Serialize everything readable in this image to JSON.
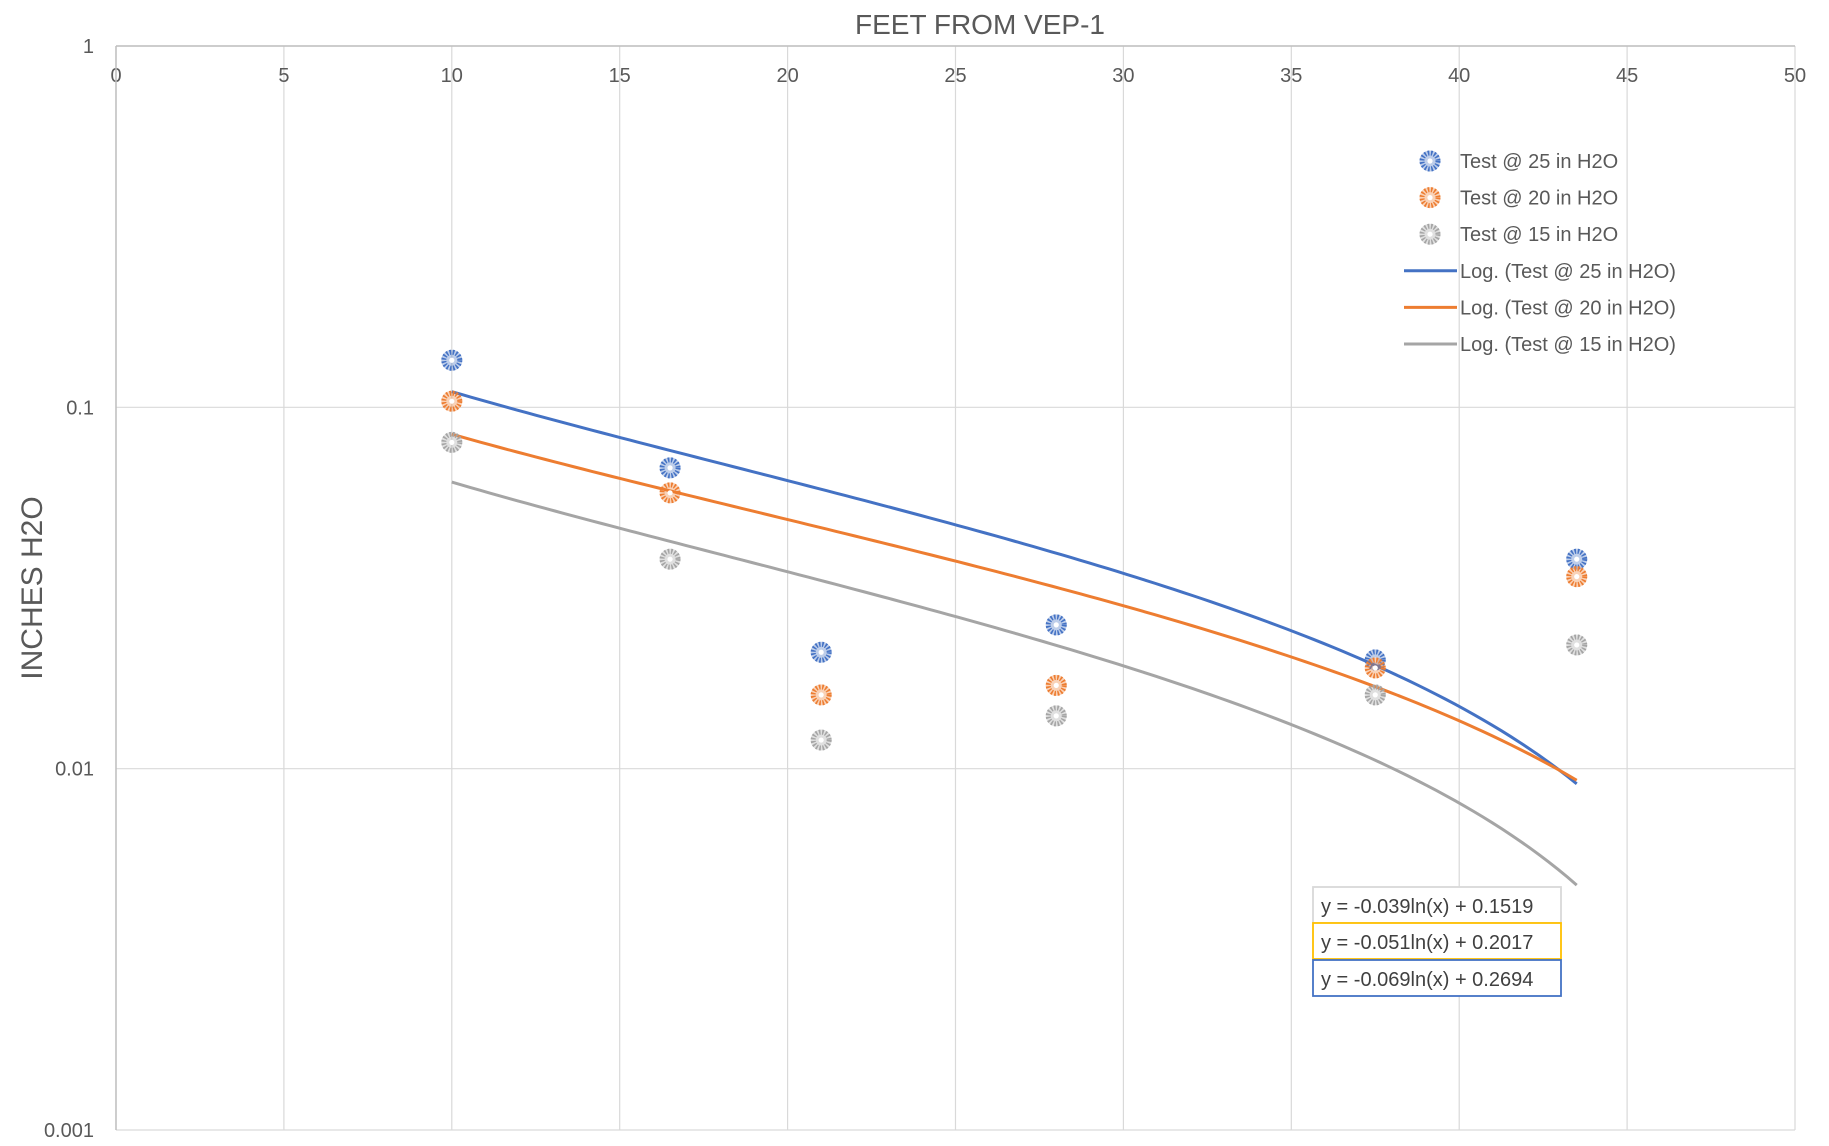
{
  "chart_data": {
    "type": "scatter",
    "title": "FEET FROM VEP-1",
    "xlabel": "",
    "ylabel": "INCHES H2O",
    "x_axis_position": "top",
    "xlim": [
      0,
      50
    ],
    "x_ticks": [
      0,
      5,
      10,
      15,
      20,
      25,
      30,
      35,
      40,
      45,
      50
    ],
    "y_scale": "log",
    "ylim": [
      0.001,
      1
    ],
    "y_ticks": [
      0.001,
      0.01,
      0.1,
      1
    ],
    "y_tick_labels": [
      "0.001",
      "0.01",
      "0.1",
      "1"
    ],
    "grid": true,
    "legend_position": "top-right",
    "x": [
      10,
      16.5,
      21,
      28,
      37.5,
      43.5
    ],
    "series": [
      {
        "name": "Test @ 25 in H2O",
        "color": "#4472C4",
        "values": [
          0.135,
          0.068,
          0.021,
          0.025,
          0.02,
          0.038
        ]
      },
      {
        "name": "Test @ 20 in H2O",
        "color": "#ED7D31",
        "values": [
          0.104,
          0.058,
          0.016,
          0.017,
          0.019,
          0.034
        ]
      },
      {
        "name": "Test @ 15 in H2O",
        "color": "#A5A5A5",
        "values": [
          0.08,
          0.038,
          0.012,
          0.014,
          0.016,
          0.022
        ]
      }
    ],
    "trendlines": [
      {
        "name": "Log. (Test @ 25 in H2O)",
        "color": "#4472C4",
        "a": -0.069,
        "b": 0.2694,
        "x_range": [
          10,
          43.5
        ],
        "equation": "y = -0.069ln(x) + 0.2694",
        "box_border": "#4472C4"
      },
      {
        "name": "Log. (Test @ 20 in H2O)",
        "color": "#ED7D31",
        "a": -0.051,
        "b": 0.2017,
        "x_range": [
          10,
          43.5
        ],
        "equation": "y = -0.051ln(x) + 0.2017",
        "box_border": "#FFC000"
      },
      {
        "name": "Log. (Test @ 15 in H2O)",
        "color": "#A5A5A5",
        "a": -0.039,
        "b": 0.1519,
        "x_range": [
          10,
          43.5
        ],
        "equation": "y = -0.039ln(x) + 0.1519",
        "box_border": "#D9D9D9"
      }
    ]
  }
}
